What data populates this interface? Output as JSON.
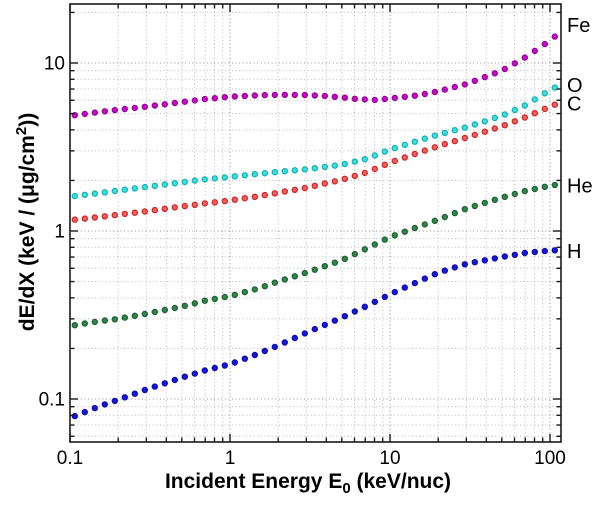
{
  "figure": {
    "background": "#ffffff",
    "axis_color": "#1a1a1a",
    "tick_color": "#1a1a1a",
    "grid_major_color": "#8f8f8f",
    "grid_minor_color": "#b9b9b9",
    "text_color": "#000000"
  },
  "chart_data": {
    "type": "scatter",
    "title": "",
    "xscale": "log",
    "yscale": "log",
    "xlim": [
      0.1,
      115
    ],
    "ylim": [
      0.055,
      22.5
    ],
    "grid": "major+minor, dotted, on",
    "legend_position": "right-outside-text-labels",
    "xlabel_parts": {
      "main": "Incident Energy E",
      "sub": "0",
      "suffix": " (keV/nuc)"
    },
    "ylabel_parts": {
      "main": "dE/dX (keV / (μg/cm",
      "sup": "2",
      "suffix": "))"
    },
    "x_tick_labels": [
      {
        "value": 0.1,
        "label": "0.1"
      },
      {
        "value": 1,
        "label": "1"
      },
      {
        "value": 10,
        "label": "10"
      },
      {
        "value": 100,
        "label": "100"
      }
    ],
    "y_tick_labels": [
      {
        "value": 10,
        "label": "10"
      },
      {
        "value": 1,
        "label": "1"
      },
      {
        "value": 0.1,
        "label": "0.1"
      }
    ],
    "minor_x_gridlines": [
      0.2,
      0.3,
      0.4,
      0.5,
      0.6,
      0.7,
      0.8,
      0.9,
      2,
      3,
      4,
      5,
      6,
      7,
      8,
      9,
      20,
      30,
      40,
      50,
      60,
      70,
      80,
      90
    ],
    "minor_y_gridlines": [
      0.06,
      0.07,
      0.08,
      0.09,
      0.2,
      0.3,
      0.4,
      0.5,
      0.6,
      0.7,
      0.8,
      0.9,
      2,
      3,
      4,
      5,
      6,
      7,
      8,
      9,
      20
    ],
    "points_per_decade": 16,
    "series": [
      {
        "name": "Fe",
        "marker": "circle",
        "fill": "#c30fc3",
        "edge": "#9c009c",
        "label_V": 16.8,
        "anchors": [
          [
            0.1,
            4.85
          ],
          [
            0.15,
            5.1
          ],
          [
            0.2,
            5.27
          ],
          [
            0.3,
            5.5
          ],
          [
            0.5,
            5.85
          ],
          [
            0.7,
            6.1
          ],
          [
            1,
            6.3
          ],
          [
            1.5,
            6.42
          ],
          [
            2,
            6.47
          ],
          [
            3,
            6.45
          ],
          [
            4,
            6.35
          ],
          [
            5,
            6.24
          ],
          [
            6,
            6.12
          ],
          [
            8,
            6.03
          ],
          [
            10,
            6.15
          ],
          [
            15,
            6.42
          ],
          [
            20,
            6.78
          ],
          [
            30,
            7.5
          ],
          [
            50,
            9.0
          ],
          [
            70,
            10.8
          ],
          [
            100,
            13.6
          ],
          [
            115,
            15.2
          ]
        ]
      },
      {
        "name": "O",
        "marker": "circle",
        "fill": "#3fdede",
        "edge": "#0ab2b2",
        "label_V": 7.4,
        "anchors": [
          [
            0.1,
            1.6
          ],
          [
            0.15,
            1.68
          ],
          [
            0.2,
            1.74
          ],
          [
            0.3,
            1.83
          ],
          [
            0.5,
            1.95
          ],
          [
            0.7,
            2.03
          ],
          [
            1,
            2.1
          ],
          [
            1.5,
            2.19
          ],
          [
            2,
            2.25
          ],
          [
            3,
            2.33
          ],
          [
            5,
            2.48
          ],
          [
            7,
            2.68
          ],
          [
            10,
            3.05
          ],
          [
            15,
            3.45
          ],
          [
            20,
            3.75
          ],
          [
            30,
            4.15
          ],
          [
            50,
            4.85
          ],
          [
            70,
            5.6
          ],
          [
            100,
            6.9
          ],
          [
            115,
            7.4
          ]
        ]
      },
      {
        "name": "C",
        "marker": "circle",
        "fill": "#f25f5f",
        "edge": "#d32222",
        "label_V": 5.75,
        "anchors": [
          [
            0.1,
            1.16
          ],
          [
            0.15,
            1.21
          ],
          [
            0.2,
            1.25
          ],
          [
            0.3,
            1.31
          ],
          [
            0.5,
            1.4
          ],
          [
            0.7,
            1.46
          ],
          [
            1,
            1.52
          ],
          [
            1.5,
            1.61
          ],
          [
            2,
            1.69
          ],
          [
            3,
            1.81
          ],
          [
            5,
            2.02
          ],
          [
            7,
            2.22
          ],
          [
            10,
            2.55
          ],
          [
            15,
            2.92
          ],
          [
            20,
            3.2
          ],
          [
            30,
            3.6
          ],
          [
            50,
            4.2
          ],
          [
            70,
            4.75
          ],
          [
            100,
            5.5
          ],
          [
            115,
            5.8
          ]
        ]
      },
      {
        "name": "He",
        "marker": "circle",
        "fill": "#2f8748",
        "edge": "#1d5f31",
        "label_V": 1.86,
        "anchors": [
          [
            0.1,
            0.272
          ],
          [
            0.15,
            0.29
          ],
          [
            0.2,
            0.3
          ],
          [
            0.3,
            0.322
          ],
          [
            0.5,
            0.355
          ],
          [
            0.7,
            0.385
          ],
          [
            1,
            0.41
          ],
          [
            1.5,
            0.455
          ],
          [
            2,
            0.5
          ],
          [
            3,
            0.565
          ],
          [
            5,
            0.67
          ],
          [
            7,
            0.78
          ],
          [
            10,
            0.92
          ],
          [
            15,
            1.06
          ],
          [
            20,
            1.17
          ],
          [
            30,
            1.36
          ],
          [
            50,
            1.58
          ],
          [
            70,
            1.73
          ],
          [
            100,
            1.86
          ],
          [
            115,
            1.9
          ]
        ]
      },
      {
        "name": "H",
        "marker": "circle",
        "fill": "#1616dd",
        "edge": "#0d0daa",
        "label_V": 0.76,
        "anchors": [
          [
            0.1,
            0.077
          ],
          [
            0.15,
            0.09
          ],
          [
            0.2,
            0.099
          ],
          [
            0.3,
            0.114
          ],
          [
            0.5,
            0.134
          ],
          [
            0.7,
            0.148
          ],
          [
            1,
            0.161
          ],
          [
            1.5,
            0.186
          ],
          [
            2,
            0.208
          ],
          [
            3,
            0.248
          ],
          [
            5,
            0.305
          ],
          [
            7,
            0.355
          ],
          [
            10,
            0.42
          ],
          [
            15,
            0.5
          ],
          [
            20,
            0.565
          ],
          [
            30,
            0.638
          ],
          [
            50,
            0.7
          ],
          [
            70,
            0.74
          ],
          [
            100,
            0.765
          ],
          [
            115,
            0.77
          ]
        ]
      }
    ]
  }
}
